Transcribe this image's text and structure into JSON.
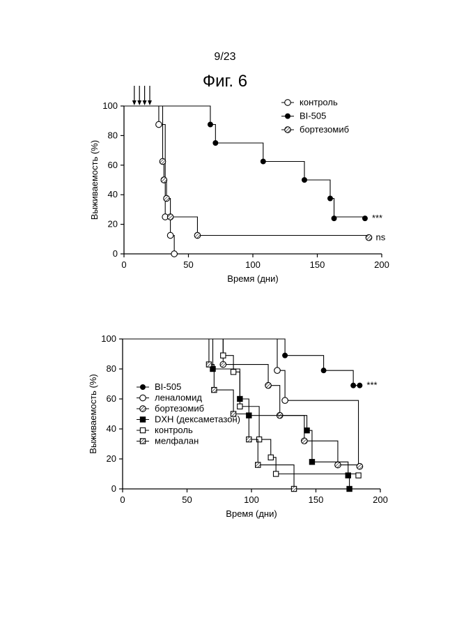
{
  "page": {
    "number": "9/23",
    "figure_title": "Фиг. 6"
  },
  "chart_data": [
    {
      "type": "line",
      "subtype": "kaplan-meier",
      "title": "",
      "xlabel": "Время (дни)",
      "ylabel": "Выживаемость (%)",
      "xlim": [
        0,
        200
      ],
      "ylim": [
        0,
        100
      ],
      "xticks": [
        "0",
        "50",
        "100",
        "150",
        "200"
      ],
      "yticks": [
        "0",
        "20",
        "40",
        "60",
        "80",
        "100"
      ],
      "grid": false,
      "legend_position": "top-right",
      "dosing_arrows_days": [
        8,
        12,
        16,
        20
      ],
      "series": [
        {
          "name": "контроль",
          "marker": "open-circle",
          "steps": [
            [
              0,
              100
            ],
            [
              27,
              100
            ],
            [
              27,
              87.5
            ],
            [
              32,
              87.5
            ],
            [
              32,
              25
            ],
            [
              36,
              25
            ],
            [
              36,
              12.5
            ],
            [
              39,
              12.5
            ],
            [
              39,
              0
            ]
          ],
          "markers": [
            [
              27,
              87.5
            ],
            [
              32,
              25
            ],
            [
              36,
              12.5
            ],
            [
              39,
              0
            ]
          ],
          "annotation": ""
        },
        {
          "name": "BI-505",
          "marker": "filled-circle",
          "steps": [
            [
              0,
              100
            ],
            [
              67,
              100
            ],
            [
              67,
              87.5
            ],
            [
              71,
              87.5
            ],
            [
              71,
              75
            ],
            [
              108,
              75
            ],
            [
              108,
              62.5
            ],
            [
              140,
              62.5
            ],
            [
              140,
              50
            ],
            [
              160,
              50
            ],
            [
              160,
              37.5
            ],
            [
              163,
              37.5
            ],
            [
              163,
              25
            ],
            [
              187,
              25
            ]
          ],
          "markers": [
            [
              67,
              87.5
            ],
            [
              71,
              75
            ],
            [
              108,
              62.5
            ],
            [
              140,
              50
            ],
            [
              160,
              37.5
            ],
            [
              163,
              24
            ],
            [
              187,
              24
            ]
          ],
          "annotation": "***"
        },
        {
          "name": "бортезомиб",
          "marker": "hatched-circle",
          "steps": [
            [
              0,
              100
            ],
            [
              30,
              100
            ],
            [
              30,
              62.5
            ],
            [
              31,
              62.5
            ],
            [
              31,
              50
            ],
            [
              33,
              50
            ],
            [
              33,
              37.5
            ],
            [
              36,
              37.5
            ],
            [
              36,
              25
            ],
            [
              57,
              25
            ],
            [
              57,
              12.5
            ],
            [
              190,
              12.5
            ]
          ],
          "markers": [
            [
              30,
              62.5
            ],
            [
              31,
              50
            ],
            [
              33,
              37.5
            ],
            [
              36,
              25
            ],
            [
              57,
              12.5
            ],
            [
              190,
              11
            ]
          ],
          "annotation": "ns"
        }
      ]
    },
    {
      "type": "line",
      "subtype": "kaplan-meier",
      "title": "",
      "xlabel": "Время (дни)",
      "ylabel": "Выживаемость (%)",
      "xlim": [
        0,
        200
      ],
      "ylim": [
        0,
        100
      ],
      "xticks": [
        "0",
        "50",
        "100",
        "150",
        "200"
      ],
      "yticks": [
        "0",
        "20",
        "40",
        "60",
        "80",
        "100"
      ],
      "grid": false,
      "legend_position": "left",
      "series": [
        {
          "name": "BI-505",
          "marker": "filled-circle",
          "steps": [
            [
              0,
              100
            ],
            [
              126,
              100
            ],
            [
              126,
              89
            ],
            [
              156,
              89
            ],
            [
              156,
              79
            ],
            [
              179,
              79
            ],
            [
              179,
              69
            ],
            [
              184,
              69
            ]
          ],
          "markers": [
            [
              126,
              89
            ],
            [
              156,
              79
            ],
            [
              179,
              69
            ],
            [
              184,
              69
            ]
          ],
          "annotation": "***"
        },
        {
          "name": "леналомид",
          "marker": "open-circle",
          "steps": [
            [
              0,
              100
            ],
            [
              120,
              100
            ],
            [
              120,
              79
            ],
            [
              126,
              79
            ],
            [
              126,
              59
            ],
            [
              183,
              59
            ],
            [
              183,
              15
            ],
            [
              185,
              15
            ]
          ],
          "markers": [
            [
              120,
              79
            ],
            [
              126,
              59
            ]
          ],
          "annotation": ""
        },
        {
          "name": "бортезомиб",
          "marker": "hatched-circle",
          "steps": [
            [
              0,
              100
            ],
            [
              78,
              100
            ],
            [
              78,
              83
            ],
            [
              113,
              83
            ],
            [
              113,
              69
            ],
            [
              122,
              69
            ],
            [
              122,
              49
            ],
            [
              141,
              49
            ],
            [
              141,
              32
            ],
            [
              167,
              32
            ],
            [
              167,
              16
            ],
            [
              184,
              16
            ]
          ],
          "markers": [
            [
              78,
              83
            ],
            [
              113,
              69
            ],
            [
              122,
              49
            ],
            [
              141,
              32
            ],
            [
              167,
              16
            ],
            [
              184,
              15
            ]
          ],
          "annotation": ""
        },
        {
          "name": "DXH (дексаметазон)",
          "marker": "filled-square",
          "steps": [
            [
              0,
              100
            ],
            [
              70,
              100
            ],
            [
              70,
              80
            ],
            [
              91,
              80
            ],
            [
              91,
              60
            ],
            [
              98,
              60
            ],
            [
              98,
              49
            ],
            [
              143,
              49
            ],
            [
              143,
              39
            ],
            [
              147,
              39
            ],
            [
              147,
              18
            ],
            [
              175,
              18
            ],
            [
              175,
              9
            ],
            [
              176,
              9
            ],
            [
              176,
              0
            ]
          ],
          "markers": [
            [
              70,
              80
            ],
            [
              91,
              60
            ],
            [
              98,
              49
            ],
            [
              143,
              39
            ],
            [
              147,
              18
            ],
            [
              175,
              9
            ],
            [
              176,
              0
            ]
          ],
          "annotation": ""
        },
        {
          "name": "контроль",
          "marker": "open-square",
          "steps": [
            [
              0,
              100
            ],
            [
              78,
              100
            ],
            [
              78,
              89
            ],
            [
              86,
              89
            ],
            [
              86,
              78
            ],
            [
              91,
              78
            ],
            [
              91,
              55
            ],
            [
              106,
              55
            ],
            [
              106,
              33
            ],
            [
              115,
              33
            ],
            [
              115,
              21
            ],
            [
              119,
              21
            ],
            [
              119,
              10
            ],
            [
              183,
              10
            ]
          ],
          "markers": [
            [
              78,
              89
            ],
            [
              86,
              78
            ],
            [
              91,
              55
            ],
            [
              106,
              33
            ],
            [
              115,
              21
            ],
            [
              119,
              10
            ],
            [
              183,
              9
            ]
          ],
          "annotation": ""
        },
        {
          "name": "мелфалан",
          "marker": "hatched-square",
          "steps": [
            [
              0,
              100
            ],
            [
              67,
              100
            ],
            [
              67,
              83
            ],
            [
              71,
              83
            ],
            [
              71,
              66
            ],
            [
              86,
              66
            ],
            [
              86,
              50
            ],
            [
              98,
              50
            ],
            [
              98,
              33
            ],
            [
              105,
              33
            ],
            [
              105,
              16
            ],
            [
              133,
              16
            ],
            [
              133,
              0
            ]
          ],
          "markers": [
            [
              67,
              83
            ],
            [
              71,
              66
            ],
            [
              86,
              50
            ],
            [
              98,
              33
            ],
            [
              105,
              16
            ],
            [
              133,
              0
            ]
          ],
          "annotation": ""
        }
      ]
    }
  ]
}
